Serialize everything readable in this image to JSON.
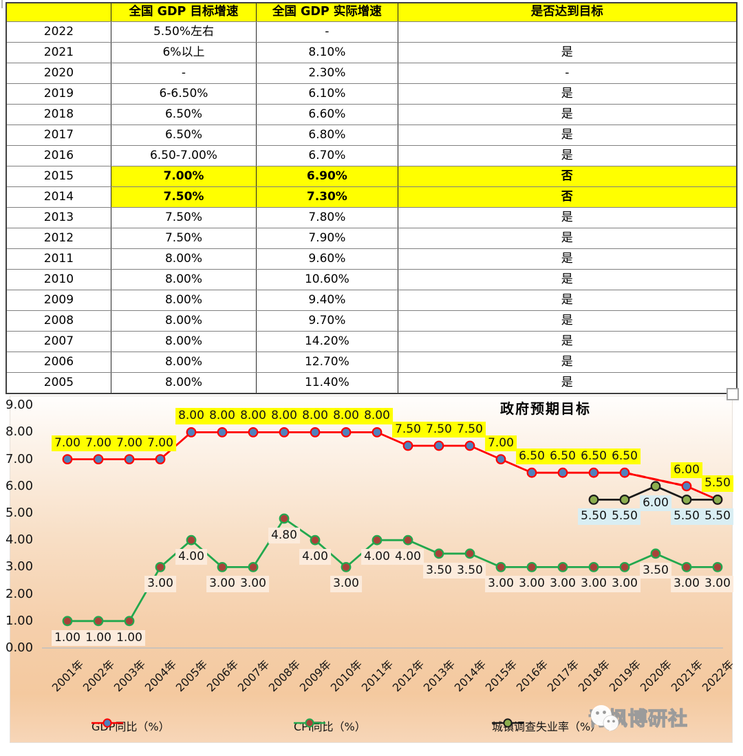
{
  "table": {
    "headers": [
      "",
      "全国 GDP 目标增速",
      "全国 GDP 实际增速",
      "是否达到目标"
    ],
    "rows": [
      {
        "year": "2022",
        "target": "5.50%左右",
        "actual": "-",
        "reached": ""
      },
      {
        "year": "2021",
        "target": "6%以上",
        "actual": "8.10%",
        "reached": "是"
      },
      {
        "year": "2020",
        "target": "-",
        "actual": "2.30%",
        "reached": "-"
      },
      {
        "year": "2019",
        "target": "6-6.50%",
        "actual": "6.10%",
        "reached": "是"
      },
      {
        "year": "2018",
        "target": "6.50%",
        "actual": "6.60%",
        "reached": "是"
      },
      {
        "year": "2017",
        "target": "6.50%",
        "actual": "6.80%",
        "reached": "是"
      },
      {
        "year": "2016",
        "target": "6.50-7.00%",
        "actual": "6.70%",
        "reached": "是"
      },
      {
        "year": "2015",
        "target": "7.00%",
        "actual": "6.90%",
        "reached": "否"
      },
      {
        "year": "2014",
        "target": "7.50%",
        "actual": "7.30%",
        "reached": "否"
      },
      {
        "year": "2013",
        "target": "7.50%",
        "actual": "7.80%",
        "reached": "是"
      },
      {
        "year": "2012",
        "target": "7.50%",
        "actual": "7.90%",
        "reached": "是"
      },
      {
        "year": "2011",
        "target": "8.00%",
        "actual": "9.60%",
        "reached": "是"
      },
      {
        "year": "2010",
        "target": "8.00%",
        "actual": "10.60%",
        "reached": "是"
      },
      {
        "year": "2009",
        "target": "8.00%",
        "actual": "9.40%",
        "reached": "是"
      },
      {
        "year": "2008",
        "target": "8.00%",
        "actual": "9.70%",
        "reached": "是"
      },
      {
        "year": "2007",
        "target": "8.00%",
        "actual": "14.20%",
        "reached": "是"
      },
      {
        "year": "2006",
        "target": "8.00%",
        "actual": "12.70%",
        "reached": "是"
      },
      {
        "year": "2005",
        "target": "8.00%",
        "actual": "11.40%",
        "reached": "是"
      }
    ],
    "highlight_value": "否",
    "highlight_color": "#FFFF00"
  },
  "chart_data": {
    "type": "line",
    "title": "政府预期目标",
    "categories": [
      "2001年",
      "2002年",
      "2003年",
      "2004年",
      "2005年",
      "2006年",
      "2007年",
      "2008年",
      "2009年",
      "2010年",
      "2011年",
      "2012年",
      "2013年",
      "2014年",
      "2015年",
      "2016年",
      "2017年",
      "2018年",
      "2019年",
      "2020年",
      "2021年",
      "2022年"
    ],
    "ylim": [
      0,
      9
    ],
    "ytick_step": 1,
    "grid": false,
    "legend_position": "bottom",
    "series": [
      {
        "key": "gdp",
        "name": "GDP同比（%）",
        "color": "#FF0000",
        "marker_fill": "#4F81BD",
        "marker_stroke": "#FF0000",
        "label_bg": "#FFFF00",
        "label_pos": "above",
        "values": [
          7,
          7,
          7,
          7,
          8,
          8,
          8,
          8,
          8,
          8,
          8,
          7.5,
          7.5,
          7.5,
          7,
          6.5,
          6.5,
          6.5,
          6.5,
          null,
          6,
          5.5
        ]
      },
      {
        "key": "cpi",
        "name": "CPI同比（%）",
        "color": "#22A84E",
        "marker_fill": "#A8433A",
        "marker_stroke": "#22A84E",
        "label_bg": "#FCEBDC",
        "label_pos": "below",
        "values": [
          1,
          1,
          1,
          3,
          4,
          3,
          3,
          4.8,
          4,
          3,
          4,
          4,
          3.5,
          3.5,
          3,
          3,
          3,
          3,
          3,
          3.5,
          3,
          3
        ]
      },
      {
        "key": "unemployment",
        "name": "城镇调查失业率（%）",
        "color": "#1A1A1A",
        "marker_fill": "#8CAE4E",
        "marker_stroke": "#1A1A1A",
        "label_bg": "#D9EEF3",
        "label_pos": "below",
        "values": [
          null,
          null,
          null,
          null,
          null,
          null,
          null,
          null,
          null,
          null,
          null,
          null,
          null,
          null,
          null,
          null,
          null,
          5.5,
          5.5,
          6,
          5.5,
          5.5
        ]
      }
    ]
  },
  "watermark": {
    "icon": "wechat-icon",
    "text": "青枫博研社"
  }
}
